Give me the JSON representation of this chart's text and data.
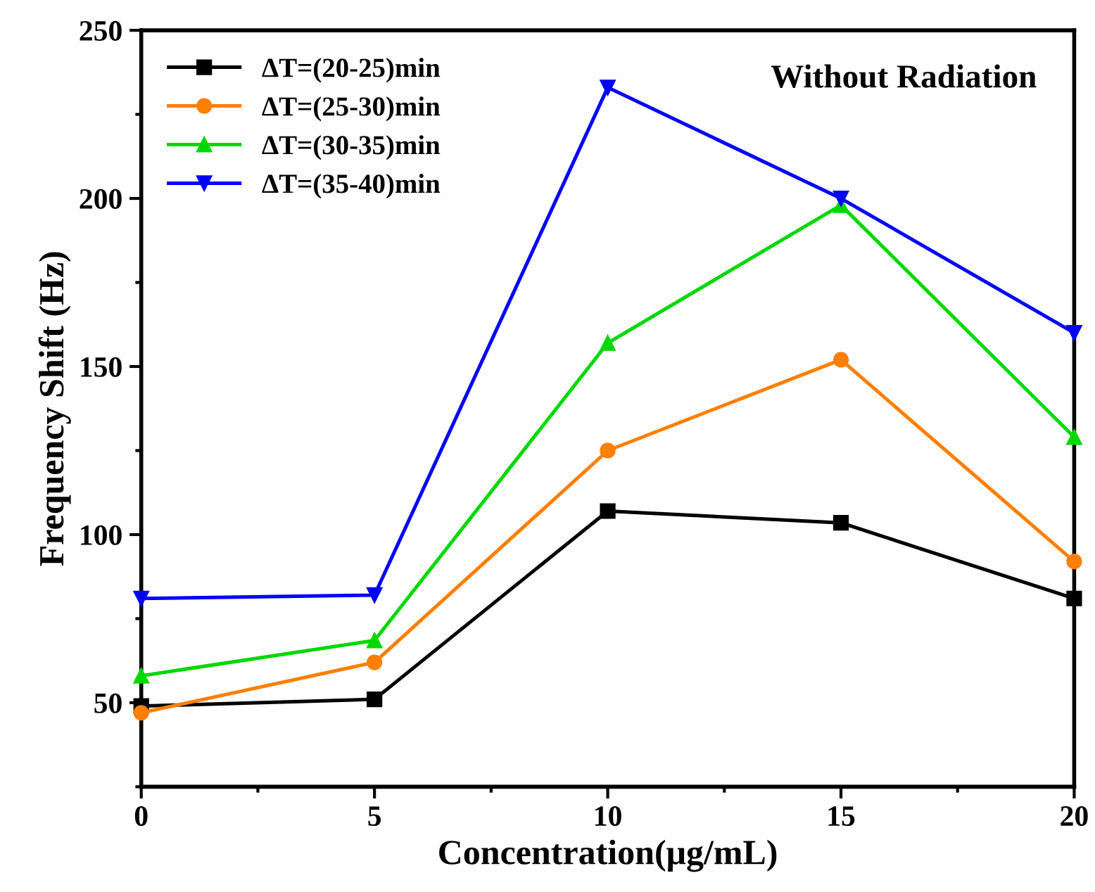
{
  "chart_data": {
    "type": "line",
    "xlabel": "Concentration(μg/mL)",
    "ylabel": "Frequency Shift (Hz)",
    "annotations": [
      "Without Radiation"
    ],
    "x": [
      0,
      5,
      10,
      15,
      20
    ],
    "xlim": [
      0,
      20
    ],
    "xticks": [
      0,
      5,
      10,
      15,
      20
    ],
    "ylim": [
      25,
      250
    ],
    "yticks": [
      50,
      100,
      150,
      200,
      250
    ],
    "grid": false,
    "legend": "top left",
    "line_style": "solid",
    "series": [
      {
        "name": "ΔT=(20-25)min",
        "color": "#000000",
        "marker": "square",
        "values": [
          49,
          51,
          107,
          103.5,
          81
        ]
      },
      {
        "name": "ΔT=(25-30)min",
        "color": "#ff7f00",
        "marker": "circle",
        "values": [
          47,
          62,
          125,
          152,
          92
        ]
      },
      {
        "name": "ΔT=(30-35)min",
        "color": "#00d800",
        "marker": "triangle",
        "values": [
          58,
          68.5,
          157,
          198,
          129
        ]
      },
      {
        "name": "ΔT=(35-40)min",
        "color": "#0000ff",
        "marker": "triangle_down",
        "values": [
          81,
          82,
          233,
          200,
          160
        ]
      }
    ]
  }
}
